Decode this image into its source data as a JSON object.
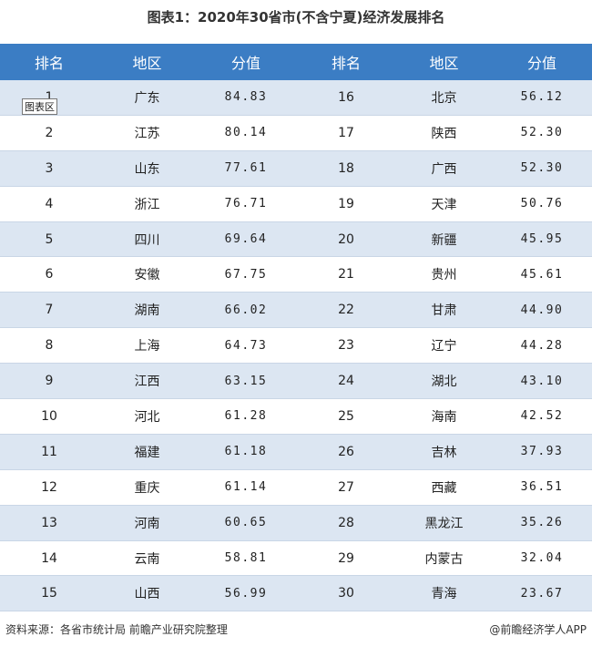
{
  "title": "图表1：2020年30省市(不含宁夏)经济发展排名",
  "tooltip": "图表区",
  "table": {
    "header": [
      "排名",
      "地区",
      "分值",
      "排名",
      "地区",
      "分值"
    ],
    "rows": [
      [
        "1",
        "广东",
        "84.83",
        "16",
        "北京",
        "56.12"
      ],
      [
        "2",
        "江苏",
        "80.14",
        "17",
        "陕西",
        "52.30"
      ],
      [
        "3",
        "山东",
        "77.61",
        "18",
        "广西",
        "52.30"
      ],
      [
        "4",
        "浙江",
        "76.71",
        "19",
        "天津",
        "50.76"
      ],
      [
        "5",
        "四川",
        "69.64",
        "20",
        "新疆",
        "45.95"
      ],
      [
        "6",
        "安徽",
        "67.75",
        "21",
        "贵州",
        "45.61"
      ],
      [
        "7",
        "湖南",
        "66.02",
        "22",
        "甘肃",
        "44.90"
      ],
      [
        "8",
        "上海",
        "64.73",
        "23",
        "辽宁",
        "44.28"
      ],
      [
        "9",
        "江西",
        "63.15",
        "24",
        "湖北",
        "43.10"
      ],
      [
        "10",
        "河北",
        "61.28",
        "25",
        "海南",
        "42.52"
      ],
      [
        "11",
        "福建",
        "61.18",
        "26",
        "吉林",
        "37.93"
      ],
      [
        "12",
        "重庆",
        "61.14",
        "27",
        "西藏",
        "36.51"
      ],
      [
        "13",
        "河南",
        "60.65",
        "28",
        "黑龙江",
        "35.26"
      ],
      [
        "14",
        "云南",
        "58.81",
        "29",
        "内蒙古",
        "32.04"
      ],
      [
        "15",
        "山西",
        "56.99",
        "30",
        "青海",
        "23.67"
      ]
    ]
  },
  "footer": {
    "source": "资料来源：各省市统计局 前瞻产业研究院整理",
    "credit": "@前瞻经济学人APP"
  }
}
